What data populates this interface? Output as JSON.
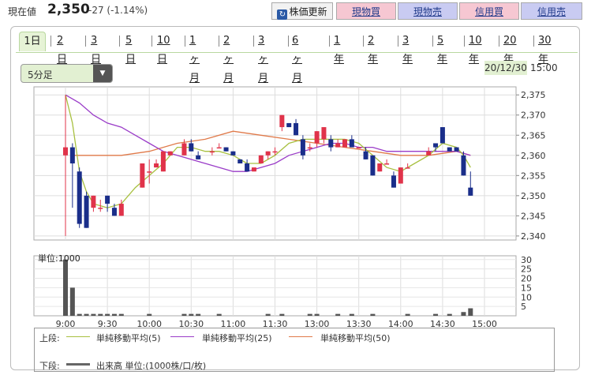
{
  "header": {
    "current_label": "現在値",
    "price": "2,350",
    "change": "-27 (-1.14%)",
    "refresh_label": "株価更新",
    "buttons": [
      "現物買",
      "現物売",
      "信用買",
      "信用売"
    ]
  },
  "tabs": [
    "1日",
    "2日",
    "3日",
    "5日",
    "10日",
    "1ヶ月",
    "2ヶ月",
    "3ヶ月",
    "6ヶ月",
    "1年",
    "2年",
    "3年",
    "5年",
    "10年",
    "20年",
    "30年"
  ],
  "interval_select": "5分足",
  "datetime": {
    "date": "20/12/30",
    "time": "15:00"
  },
  "legend": {
    "upper_label": "上段:",
    "lower_label": "下段:",
    "items": [
      "単純移動平均(5)",
      "単純移動平均(25)",
      "単純移動平均(50)"
    ],
    "volume_label": "出来高 単位:(1000株/口/枚)"
  },
  "colors": {
    "up": "#e0334a",
    "down": "#1a2e8a",
    "ma5": "#a8c040",
    "ma25": "#9a3cc8",
    "ma50": "#e07a4a",
    "volume": "#555555"
  },
  "chart_data": {
    "type": "candlestick",
    "x_ticks": [
      "9:00",
      "9:30",
      "10:00",
      "10:30",
      "11:00",
      "11:30",
      "13:00",
      "13:30",
      "14:00",
      "14:30",
      "15:00"
    ],
    "y_ticks": [
      "2,375",
      "2,370",
      "2,365",
      "2,360",
      "2,355",
      "2,350",
      "2,345",
      "2,340"
    ],
    "ylim": [
      2339,
      2377
    ],
    "candles": [
      {
        "x": 0,
        "o": 2360,
        "h": 2375,
        "l": 2340,
        "c": 2362
      },
      {
        "x": 1,
        "o": 2362,
        "h": 2363,
        "l": 2347,
        "c": 2358
      },
      {
        "x": 2,
        "o": 2356,
        "h": 2357,
        "l": 2342,
        "c": 2343
      },
      {
        "x": 3,
        "o": 2350,
        "h": 2351,
        "l": 2342,
        "c": 2342
      },
      {
        "x": 4,
        "o": 2347,
        "h": 2350,
        "l": 2346,
        "c": 2350
      },
      {
        "x": 5,
        "o": 2347,
        "h": 2349,
        "l": 2346,
        "c": 2347
      },
      {
        "x": 6,
        "o": 2350,
        "h": 2350,
        "l": 2346,
        "c": 2348
      },
      {
        "x": 7,
        "o": 2347,
        "h": 2348,
        "l": 2345,
        "c": 2345
      },
      {
        "x": 8,
        "o": 2345,
        "h": 2349,
        "l": 2345,
        "c": 2348
      },
      {
        "x": 11,
        "o": 2352,
        "h": 2358,
        "l": 2352,
        "c": 2358
      },
      {
        "x": 12,
        "o": 2356,
        "h": 2359,
        "l": 2353,
        "c": 2356
      },
      {
        "x": 13,
        "o": 2357,
        "h": 2359,
        "l": 2357,
        "c": 2358
      },
      {
        "x": 14,
        "o": 2356,
        "h": 2361,
        "l": 2356,
        "c": 2361
      },
      {
        "x": 15,
        "o": 2360,
        "h": 2361,
        "l": 2360,
        "c": 2361
      },
      {
        "x": 17,
        "o": 2360,
        "h": 2364,
        "l": 2360,
        "c": 2363
      },
      {
        "x": 18,
        "o": 2363,
        "h": 2364,
        "l": 2361,
        "c": 2361
      },
      {
        "x": 19,
        "o": 2360,
        "h": 2361,
        "l": 2359,
        "c": 2359
      },
      {
        "x": 21,
        "o": 2361,
        "h": 2362,
        "l": 2360,
        "c": 2361
      },
      {
        "x": 22,
        "o": 2362,
        "h": 2363,
        "l": 2362,
        "c": 2362
      },
      {
        "x": 23,
        "o": 2362,
        "h": 2362,
        "l": 2361,
        "c": 2361
      },
      {
        "x": 24,
        "o": 2361,
        "h": 2361,
        "l": 2360,
        "c": 2360
      },
      {
        "x": 25,
        "o": 2359,
        "h": 2359,
        "l": 2358,
        "c": 2358
      },
      {
        "x": 26,
        "o": 2358,
        "h": 2359,
        "l": 2356,
        "c": 2356
      },
      {
        "x": 27,
        "o": 2356,
        "h": 2357,
        "l": 2356,
        "c": 2357
      },
      {
        "x": 28,
        "o": 2358,
        "h": 2360,
        "l": 2358,
        "c": 2360
      },
      {
        "x": 29,
        "o": 2360,
        "h": 2361,
        "l": 2359,
        "c": 2361
      },
      {
        "x": 30,
        "o": 2361,
        "h": 2362,
        "l": 2360,
        "c": 2361
      },
      {
        "x": 31,
        "o": 2367,
        "h": 2370,
        "l": 2366,
        "c": 2370
      },
      {
        "x": 32,
        "o": 2368,
        "h": 2368,
        "l": 2367,
        "c": 2367
      },
      {
        "x": 33,
        "o": 2368,
        "h": 2369,
        "l": 2365,
        "c": 2365
      },
      {
        "x": 34,
        "o": 2364,
        "h": 2365,
        "l": 2359,
        "c": 2360
      },
      {
        "x": 35,
        "o": 2362,
        "h": 2363,
        "l": 2361,
        "c": 2362
      },
      {
        "x": 36,
        "o": 2363,
        "h": 2366,
        "l": 2362,
        "c": 2366
      },
      {
        "x": 37,
        "o": 2364,
        "h": 2367,
        "l": 2363,
        "c": 2367
      },
      {
        "x": 38,
        "o": 2364,
        "h": 2365,
        "l": 2361,
        "c": 2362
      },
      {
        "x": 39,
        "o": 2362,
        "h": 2364,
        "l": 2362,
        "c": 2363
      },
      {
        "x": 40,
        "o": 2362,
        "h": 2364,
        "l": 2362,
        "c": 2364
      },
      {
        "x": 41,
        "o": 2364,
        "h": 2365,
        "l": 2362,
        "c": 2362
      },
      {
        "x": 42,
        "o": 2362,
        "h": 2362,
        "l": 2362,
        "c": 2362
      },
      {
        "x": 43,
        "o": 2361,
        "h": 2362,
        "l": 2359,
        "c": 2359
      },
      {
        "x": 44,
        "o": 2360,
        "h": 2360,
        "l": 2355,
        "c": 2355
      },
      {
        "x": 45,
        "o": 2356,
        "h": 2358,
        "l": 2356,
        "c": 2358
      },
      {
        "x": 46,
        "o": 2358,
        "h": 2359,
        "l": 2358,
        "c": 2358
      },
      {
        "x": 47,
        "o": 2355,
        "h": 2356,
        "l": 2352,
        "c": 2352
      },
      {
        "x": 48,
        "o": 2353,
        "h": 2357,
        "l": 2353,
        "c": 2357
      },
      {
        "x": 49,
        "o": 2357,
        "h": 2358,
        "l": 2357,
        "c": 2357
      },
      {
        "x": 52,
        "o": 2360,
        "h": 2362,
        "l": 2360,
        "c": 2361
      },
      {
        "x": 53,
        "o": 2363,
        "h": 2363,
        "l": 2361,
        "c": 2362
      },
      {
        "x": 54,
        "o": 2367,
        "h": 2367,
        "l": 2363,
        "c": 2363
      },
      {
        "x": 55,
        "o": 2362,
        "h": 2362,
        "l": 2361,
        "c": 2361
      },
      {
        "x": 56,
        "o": 2362,
        "h": 2362,
        "l": 2361,
        "c": 2361
      },
      {
        "x": 57,
        "o": 2360,
        "h": 2361,
        "l": 2355,
        "c": 2355
      },
      {
        "x": 58,
        "o": 2352,
        "h": 2356,
        "l": 2350,
        "c": 2350
      }
    ],
    "ma5": [
      [
        0,
        2375
      ],
      [
        1,
        2368
      ],
      [
        2,
        2356
      ],
      [
        3,
        2351
      ],
      [
        4,
        2348
      ],
      [
        6,
        2347
      ],
      [
        8,
        2348
      ],
      [
        10,
        2352
      ],
      [
        12,
        2355
      ],
      [
        14,
        2358
      ],
      [
        16,
        2362
      ],
      [
        18,
        2362
      ],
      [
        20,
        2361
      ],
      [
        22,
        2361
      ],
      [
        24,
        2360
      ],
      [
        26,
        2358
      ],
      [
        28,
        2358
      ],
      [
        30,
        2360
      ],
      [
        32,
        2363
      ],
      [
        34,
        2364
      ],
      [
        36,
        2364
      ],
      [
        38,
        2364
      ],
      [
        40,
        2364
      ],
      [
        42,
        2363
      ],
      [
        44,
        2360
      ],
      [
        46,
        2357
      ],
      [
        48,
        2356
      ],
      [
        50,
        2358
      ],
      [
        52,
        2360
      ],
      [
        54,
        2363
      ],
      [
        56,
        2362
      ],
      [
        57,
        2360
      ],
      [
        58,
        2357
      ]
    ],
    "ma25": [
      [
        0,
        2375
      ],
      [
        2,
        2373
      ],
      [
        4,
        2370
      ],
      [
        6,
        2368
      ],
      [
        8,
        2367
      ],
      [
        10,
        2365
      ],
      [
        12,
        2363
      ],
      [
        14,
        2361
      ],
      [
        16,
        2360
      ],
      [
        18,
        2359
      ],
      [
        20,
        2358
      ],
      [
        22,
        2357
      ],
      [
        24,
        2356
      ],
      [
        26,
        2356
      ],
      [
        28,
        2357
      ],
      [
        30,
        2358
      ],
      [
        32,
        2360
      ],
      [
        34,
        2361
      ],
      [
        36,
        2362
      ],
      [
        38,
        2363
      ],
      [
        40,
        2363
      ],
      [
        42,
        2362
      ],
      [
        44,
        2362
      ],
      [
        46,
        2361
      ],
      [
        48,
        2361
      ],
      [
        50,
        2361
      ],
      [
        52,
        2361
      ],
      [
        54,
        2361
      ],
      [
        56,
        2361
      ],
      [
        58,
        2360
      ]
    ],
    "ma50": [
      [
        1,
        2360
      ],
      [
        4,
        2360
      ],
      [
        8,
        2360
      ],
      [
        12,
        2361
      ],
      [
        16,
        2363
      ],
      [
        20,
        2364
      ],
      [
        24,
        2366
      ],
      [
        28,
        2365
      ],
      [
        32,
        2364
      ],
      [
        36,
        2363
      ],
      [
        40,
        2362
      ],
      [
        44,
        2361
      ],
      [
        48,
        2360
      ],
      [
        52,
        2360
      ],
      [
        56,
        2361
      ],
      [
        58,
        2360
      ]
    ],
    "volume": {
      "unit_label": "単位:1000",
      "y_ticks": [
        "30",
        "25",
        "20",
        "15",
        "10",
        "5"
      ],
      "ylim": [
        0,
        32
      ],
      "bars": [
        {
          "x": 0,
          "v": 30
        },
        {
          "x": 1,
          "v": 15
        },
        {
          "x": 2,
          "v": 1
        },
        {
          "x": 3,
          "v": 1
        },
        {
          "x": 4,
          "v": 1
        },
        {
          "x": 5,
          "v": 1
        },
        {
          "x": 6,
          "v": 1
        },
        {
          "x": 7,
          "v": 1
        },
        {
          "x": 8,
          "v": 1
        },
        {
          "x": 12,
          "v": 1
        },
        {
          "x": 17,
          "v": 1
        },
        {
          "x": 18,
          "v": 1
        },
        {
          "x": 19,
          "v": 1
        },
        {
          "x": 22,
          "v": 1
        },
        {
          "x": 29,
          "v": 1
        },
        {
          "x": 31,
          "v": 1
        },
        {
          "x": 35,
          "v": 1
        },
        {
          "x": 36,
          "v": 1
        },
        {
          "x": 39,
          "v": 1
        },
        {
          "x": 41,
          "v": 1
        },
        {
          "x": 44,
          "v": 1
        },
        {
          "x": 49,
          "v": 1
        },
        {
          "x": 53,
          "v": 1
        },
        {
          "x": 55,
          "v": 1
        },
        {
          "x": 57,
          "v": 2
        },
        {
          "x": 58,
          "v": 4
        }
      ]
    }
  }
}
